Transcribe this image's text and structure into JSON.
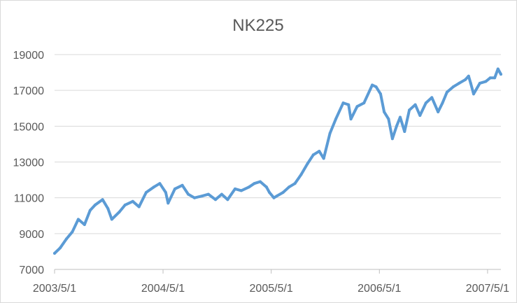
{
  "chart_data": {
    "type": "line",
    "title": "NK225",
    "xlabel": "",
    "ylabel": "",
    "ylim": [
      7000,
      19000
    ],
    "y_ticks": [
      "7000",
      "9000",
      "11000",
      "13000",
      "15000",
      "17000",
      "19000"
    ],
    "x_range": [
      "2003/5/1",
      "2007/6/15"
    ],
    "x_ticks": [
      "2003/5/1",
      "2004/5/1",
      "2005/5/1",
      "2006/5/1",
      "2007/5/1"
    ],
    "grid": true,
    "legend": "none",
    "line_color": "#5b9bd5",
    "series": [
      {
        "x": [
          "2003/5/1",
          "2003/5/20",
          "2003/6/10",
          "2003/6/30",
          "2003/7/20",
          "2003/8/10",
          "2003/8/29",
          "2003/9/15",
          "2003/10/10",
          "2003/10/28",
          "2003/11/10",
          "2003/12/5",
          "2003/12/25",
          "2004/1/20",
          "2004/2/10",
          "2004/3/5",
          "2004/3/31",
          "2004/4/20",
          "2004/5/10",
          "2004/5/18",
          "2004/6/10",
          "2004/7/5",
          "2004/7/25",
          "2004/8/15",
          "2004/9/10",
          "2004/10/1",
          "2004/10/25",
          "2004/11/15",
          "2004/12/5",
          "2004/12/30",
          "2005/1/20",
          "2005/2/15",
          "2005/3/5",
          "2005/3/25",
          "2005/4/15",
          "2005/4/25",
          "2005/5/10",
          "2005/5/20",
          "2005/6/10",
          "2005/6/30",
          "2005/7/20",
          "2005/8/10",
          "2005/8/31",
          "2005/9/20",
          "2005/10/10",
          "2005/10/25",
          "2005/11/15",
          "2005/12/5",
          "2005/12/30",
          "2006/1/17",
          "2006/1/25",
          "2006/2/15",
          "2006/3/10",
          "2006/4/7",
          "2006/4/20",
          "2006/5/5",
          "2006/5/17",
          "2006/6/1",
          "2006/6/14",
          "2006/6/28",
          "2006/7/10",
          "2006/7/25",
          "2006/8/10",
          "2006/8/30",
          "2006/9/15",
          "2006/10/5",
          "2006/10/25",
          "2006/11/15",
          "2006/11/30",
          "2006/12/15",
          "2007/1/5",
          "2007/1/25",
          "2007/2/15",
          "2007/2/26",
          "2007/3/5",
          "2007/3/15",
          "2007/4/5",
          "2007/4/25",
          "2007/5/10",
          "2007/5/25",
          "2007/6/5",
          "2007/6/15"
        ],
        "y": [
          7900,
          8200,
          8700,
          9100,
          9800,
          9500,
          10300,
          10600,
          10900,
          10400,
          9800,
          10200,
          10600,
          10800,
          10500,
          11300,
          11600,
          11800,
          11300,
          10700,
          11500,
          11700,
          11200,
          11000,
          11100,
          11200,
          10900,
          11200,
          10900,
          11500,
          11400,
          11600,
          11800,
          11900,
          11600,
          11300,
          11000,
          11100,
          11300,
          11600,
          11800,
          12300,
          12900,
          13400,
          13600,
          13200,
          14600,
          15400,
          16300,
          16200,
          15400,
          16100,
          16300,
          17300,
          17200,
          16800,
          15800,
          15400,
          14300,
          15000,
          15500,
          14700,
          15900,
          16200,
          15600,
          16300,
          16600,
          15800,
          16300,
          16900,
          17200,
          17400,
          17600,
          17800,
          17400,
          16800,
          17400,
          17500,
          17700,
          17700,
          18200,
          17900
        ]
      }
    ]
  }
}
